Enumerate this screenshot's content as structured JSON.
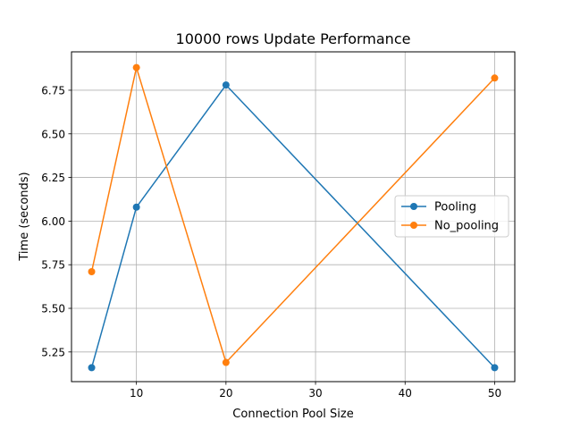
{
  "chart_data": {
    "type": "line",
    "title": "10000 rows Update Performance",
    "xlabel": "Connection Pool Size",
    "ylabel": "Time (seconds)",
    "x": [
      5,
      10,
      20,
      50
    ],
    "xlim": [
      2.75,
      52.25
    ],
    "ylim": [
      5.08,
      6.97
    ],
    "xticks": [
      10,
      20,
      30,
      40,
      50
    ],
    "yticks": [
      5.25,
      5.5,
      5.75,
      6.0,
      6.25,
      6.5,
      6.75
    ],
    "ytick_labels": [
      "5.25",
      "5.50",
      "5.75",
      "6.00",
      "6.25",
      "6.50",
      "6.75"
    ],
    "grid": true,
    "legend_position": "center-right",
    "series": [
      {
        "name": "Pooling",
        "color": "#1f77b4",
        "values": [
          5.16,
          6.08,
          6.78,
          5.16
        ]
      },
      {
        "name": "No_pooling",
        "color": "#ff7f0e",
        "values": [
          5.71,
          6.88,
          5.19,
          6.82
        ]
      }
    ]
  }
}
